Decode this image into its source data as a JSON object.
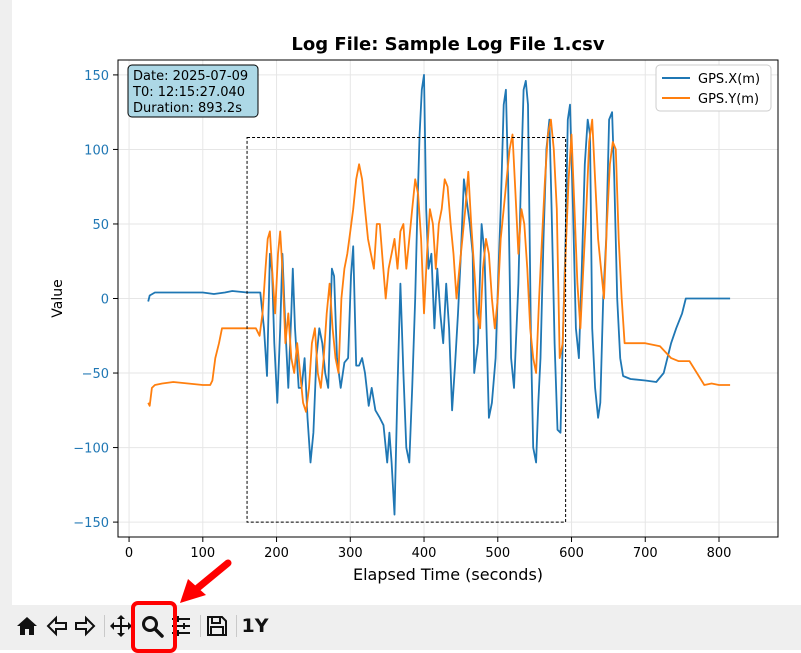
{
  "toolbar": {
    "buttons": [
      {
        "name": "home-button",
        "icon": "home-icon"
      },
      {
        "name": "back-button",
        "icon": "back-arrow-icon"
      },
      {
        "name": "forward-button",
        "icon": "forward-arrow-icon"
      },
      {
        "name": "pan-button",
        "icon": "move-icon"
      },
      {
        "name": "zoom-button",
        "icon": "magnifier-icon"
      },
      {
        "name": "configure-subplots-button",
        "icon": "sliders-icon"
      },
      {
        "name": "save-button",
        "icon": "floppy-icon"
      },
      {
        "name": "y-axis-button",
        "icon": "text-icon",
        "label": "1Y"
      }
    ],
    "highlighted": "zoom-button"
  },
  "annotation_colors": {
    "highlight": "#ff0000",
    "arrow": "#ff0000"
  },
  "chart_data": {
    "type": "line",
    "title": "Log File: Sample Log File 1.csv",
    "xlabel": "Elapsed Time (seconds)",
    "ylabel": "Value",
    "xlim": [
      -15,
      880
    ],
    "ylim": [
      -160,
      160
    ],
    "xticks": [
      0,
      100,
      200,
      300,
      400,
      500,
      600,
      700,
      800
    ],
    "yticks": [
      -150,
      -100,
      -50,
      0,
      50,
      100,
      150
    ],
    "grid": true,
    "legend_position": "upper right",
    "info_box": [
      "Date: 2025-07-09",
      "T0: 12:15:27.040",
      "Duration: 893.2s"
    ],
    "zoom_rect": {
      "x": [
        160,
        592
      ],
      "y": [
        -150,
        108
      ]
    },
    "series": [
      {
        "name": "GPS.X(m)",
        "color": "#1f77b4",
        "points": [
          [
            26,
            -2
          ],
          [
            28,
            2
          ],
          [
            35,
            4
          ],
          [
            60,
            4
          ],
          [
            100,
            4
          ],
          [
            115,
            3
          ],
          [
            130,
            4
          ],
          [
            140,
            5
          ],
          [
            160,
            4
          ],
          [
            178,
            4
          ],
          [
            183,
            -20
          ],
          [
            187,
            -52
          ],
          [
            191,
            30
          ],
          [
            194,
            18
          ],
          [
            197,
            -30
          ],
          [
            201,
            -70
          ],
          [
            205,
            -20
          ],
          [
            208,
            30
          ],
          [
            212,
            -20
          ],
          [
            216,
            -60
          ],
          [
            220,
            -10
          ],
          [
            222,
            20
          ],
          [
            225,
            -20
          ],
          [
            230,
            -60
          ],
          [
            234,
            -60
          ],
          [
            238,
            -40
          ],
          [
            242,
            -80
          ],
          [
            246,
            -110
          ],
          [
            250,
            -90
          ],
          [
            254,
            -40
          ],
          [
            258,
            -20
          ],
          [
            262,
            -30
          ],
          [
            266,
            -50
          ],
          [
            270,
            -60
          ],
          [
            275,
            20
          ],
          [
            278,
            15
          ],
          [
            282,
            -40
          ],
          [
            287,
            -60
          ],
          [
            292,
            -43
          ],
          [
            297,
            -40
          ],
          [
            301,
            15
          ],
          [
            304,
            35
          ],
          [
            308,
            -45
          ],
          [
            312,
            -45
          ],
          [
            316,
            -40
          ],
          [
            320,
            -50
          ],
          [
            325,
            -72
          ],
          [
            329,
            -60
          ],
          [
            334,
            -75
          ],
          [
            340,
            -80
          ],
          [
            345,
            -85
          ],
          [
            350,
            -110
          ],
          [
            353,
            -90
          ],
          [
            356,
            -110
          ],
          [
            360,
            -145
          ],
          [
            364,
            -60
          ],
          [
            368,
            10
          ],
          [
            372,
            -50
          ],
          [
            376,
            -100
          ],
          [
            380,
            -110
          ],
          [
            384,
            -60
          ],
          [
            388,
            0
          ],
          [
            391,
            60
          ],
          [
            394,
            110
          ],
          [
            397,
            140
          ],
          [
            400,
            150
          ],
          [
            403,
            60
          ],
          [
            406,
            20
          ],
          [
            410,
            30
          ],
          [
            414,
            -20
          ],
          [
            418,
            20
          ],
          [
            422,
            -10
          ],
          [
            426,
            -30
          ],
          [
            430,
            10
          ],
          [
            434,
            -20
          ],
          [
            438,
            -75
          ],
          [
            442,
            -45
          ],
          [
            446,
            -10
          ],
          [
            450,
            30
          ],
          [
            454,
            80
          ],
          [
            458,
            65
          ],
          [
            462,
            50
          ],
          [
            466,
            30
          ],
          [
            468,
            -50
          ],
          [
            473,
            -30
          ],
          [
            478,
            50
          ],
          [
            482,
            30
          ],
          [
            488,
            -80
          ],
          [
            492,
            -70
          ],
          [
            497,
            -40
          ],
          [
            501,
            20
          ],
          [
            504,
            60
          ],
          [
            508,
            130
          ],
          [
            511,
            140
          ],
          [
            514,
            80
          ],
          [
            518,
            -40
          ],
          [
            522,
            -60
          ],
          [
            528,
            10
          ],
          [
            531,
            70
          ],
          [
            535,
            140
          ],
          [
            538,
            146
          ],
          [
            541,
            130
          ],
          [
            545,
            -30
          ],
          [
            548,
            -100
          ],
          [
            552,
            -110
          ],
          [
            555,
            -70
          ],
          [
            558,
            -40
          ],
          [
            562,
            40
          ],
          [
            566,
            100
          ],
          [
            570,
            120
          ],
          [
            573,
            60
          ],
          [
            577,
            -30
          ],
          [
            581,
            -88
          ],
          [
            585,
            -90
          ],
          [
            588,
            -30
          ],
          [
            592,
            40
          ],
          [
            595,
            120
          ],
          [
            598,
            130
          ],
          [
            602,
            60
          ],
          [
            606,
            -20
          ],
          [
            610,
            -40
          ],
          [
            614,
            20
          ],
          [
            618,
            90
          ],
          [
            622,
            120
          ],
          [
            625,
            110
          ],
          [
            628,
            -20
          ],
          [
            632,
            -60
          ],
          [
            636,
            -80
          ],
          [
            639,
            -70
          ],
          [
            643,
            0
          ],
          [
            647,
            40
          ],
          [
            651,
            120
          ],
          [
            655,
            125
          ],
          [
            658,
            80
          ],
          [
            662,
            0
          ],
          [
            666,
            -40
          ],
          [
            670,
            -52
          ],
          [
            680,
            -54
          ],
          [
            700,
            -55
          ],
          [
            715,
            -56
          ],
          [
            725,
            -50
          ],
          [
            735,
            -30
          ],
          [
            742,
            -20
          ],
          [
            750,
            -10
          ],
          [
            755,
            0
          ],
          [
            765,
            0
          ],
          [
            780,
            0
          ],
          [
            800,
            0
          ],
          [
            815,
            0
          ]
        ]
      },
      {
        "name": "GPS.Y(m)",
        "color": "#ff7f0e",
        "points": [
          [
            26,
            -70
          ],
          [
            28,
            -72
          ],
          [
            31,
            -60
          ],
          [
            35,
            -58
          ],
          [
            45,
            -57
          ],
          [
            60,
            -56
          ],
          [
            80,
            -57
          ],
          [
            100,
            -58
          ],
          [
            110,
            -58
          ],
          [
            113,
            -55
          ],
          [
            117,
            -40
          ],
          [
            122,
            -30
          ],
          [
            126,
            -20
          ],
          [
            135,
            -20
          ],
          [
            145,
            -20
          ],
          [
            160,
            -20
          ],
          [
            172,
            -20
          ],
          [
            177,
            -25
          ],
          [
            181,
            -10
          ],
          [
            185,
            20
          ],
          [
            188,
            40
          ],
          [
            191,
            45
          ],
          [
            194,
            20
          ],
          [
            198,
            -10
          ],
          [
            202,
            30
          ],
          [
            205,
            45
          ],
          [
            208,
            20
          ],
          [
            212,
            -30
          ],
          [
            216,
            -10
          ],
          [
            220,
            -40
          ],
          [
            224,
            -50
          ],
          [
            228,
            -30
          ],
          [
            232,
            -50
          ],
          [
            236,
            -70
          ],
          [
            240,
            -76
          ],
          [
            244,
            -60
          ],
          [
            248,
            -30
          ],
          [
            252,
            -20
          ],
          [
            256,
            -50
          ],
          [
            260,
            -60
          ],
          [
            264,
            -40
          ],
          [
            268,
            -10
          ],
          [
            272,
            10
          ],
          [
            276,
            -20
          ],
          [
            280,
            -40
          ],
          [
            284,
            -50
          ],
          [
            288,
            0
          ],
          [
            292,
            20
          ],
          [
            296,
            30
          ],
          [
            300,
            45
          ],
          [
            304,
            60
          ],
          [
            308,
            80
          ],
          [
            312,
            90
          ],
          [
            316,
            80
          ],
          [
            320,
            60
          ],
          [
            324,
            40
          ],
          [
            328,
            30
          ],
          [
            332,
            20
          ],
          [
            336,
            50
          ],
          [
            340,
            50
          ],
          [
            344,
            25
          ],
          [
            348,
            0
          ],
          [
            352,
            20
          ],
          [
            356,
            30
          ],
          [
            360,
            40
          ],
          [
            364,
            20
          ],
          [
            368,
            45
          ],
          [
            372,
            50
          ],
          [
            376,
            20
          ],
          [
            380,
            40
          ],
          [
            384,
            60
          ],
          [
            388,
            80
          ],
          [
            392,
            70
          ],
          [
            396,
            40
          ],
          [
            400,
            -10
          ],
          [
            404,
            30
          ],
          [
            408,
            60
          ],
          [
            412,
            50
          ],
          [
            416,
            20
          ],
          [
            420,
            50
          ],
          [
            424,
            60
          ],
          [
            428,
            80
          ],
          [
            432,
            75
          ],
          [
            436,
            50
          ],
          [
            440,
            30
          ],
          [
            444,
            0
          ],
          [
            448,
            20
          ],
          [
            452,
            40
          ],
          [
            456,
            60
          ],
          [
            460,
            85
          ],
          [
            464,
            50
          ],
          [
            468,
            20
          ],
          [
            472,
            -10
          ],
          [
            476,
            -20
          ],
          [
            480,
            20
          ],
          [
            484,
            40
          ],
          [
            488,
            30
          ],
          [
            492,
            0
          ],
          [
            496,
            -20
          ],
          [
            500,
            0
          ],
          [
            504,
            40
          ],
          [
            508,
            60
          ],
          [
            512,
            80
          ],
          [
            516,
            100
          ],
          [
            520,
            110
          ],
          [
            524,
            70
          ],
          [
            528,
            30
          ],
          [
            532,
            60
          ],
          [
            536,
            50
          ],
          [
            540,
            20
          ],
          [
            544,
            -20
          ],
          [
            548,
            -40
          ],
          [
            552,
            -50
          ],
          [
            556,
            0
          ],
          [
            560,
            40
          ],
          [
            564,
            80
          ],
          [
            568,
            110
          ],
          [
            572,
            120
          ],
          [
            576,
            100
          ],
          [
            580,
            60
          ],
          [
            584,
            -40
          ],
          [
            588,
            -30
          ],
          [
            592,
            30
          ],
          [
            596,
            80
          ],
          [
            600,
            110
          ],
          [
            604,
            60
          ],
          [
            608,
            10
          ],
          [
            612,
            -20
          ],
          [
            616,
            20
          ],
          [
            620,
            60
          ],
          [
            624,
            105
          ],
          [
            628,
            120
          ],
          [
            632,
            80
          ],
          [
            636,
            40
          ],
          [
            640,
            20
          ],
          [
            644,
            0
          ],
          [
            648,
            50
          ],
          [
            652,
            90
          ],
          [
            656,
            105
          ],
          [
            660,
            100
          ],
          [
            664,
            40
          ],
          [
            668,
            0
          ],
          [
            672,
            -30
          ],
          [
            680,
            -30
          ],
          [
            700,
            -30
          ],
          [
            720,
            -32
          ],
          [
            735,
            -40
          ],
          [
            745,
            -42
          ],
          [
            760,
            -42
          ],
          [
            770,
            -50
          ],
          [
            780,
            -58
          ],
          [
            790,
            -57
          ],
          [
            800,
            -58
          ],
          [
            815,
            -58
          ]
        ]
      }
    ]
  }
}
